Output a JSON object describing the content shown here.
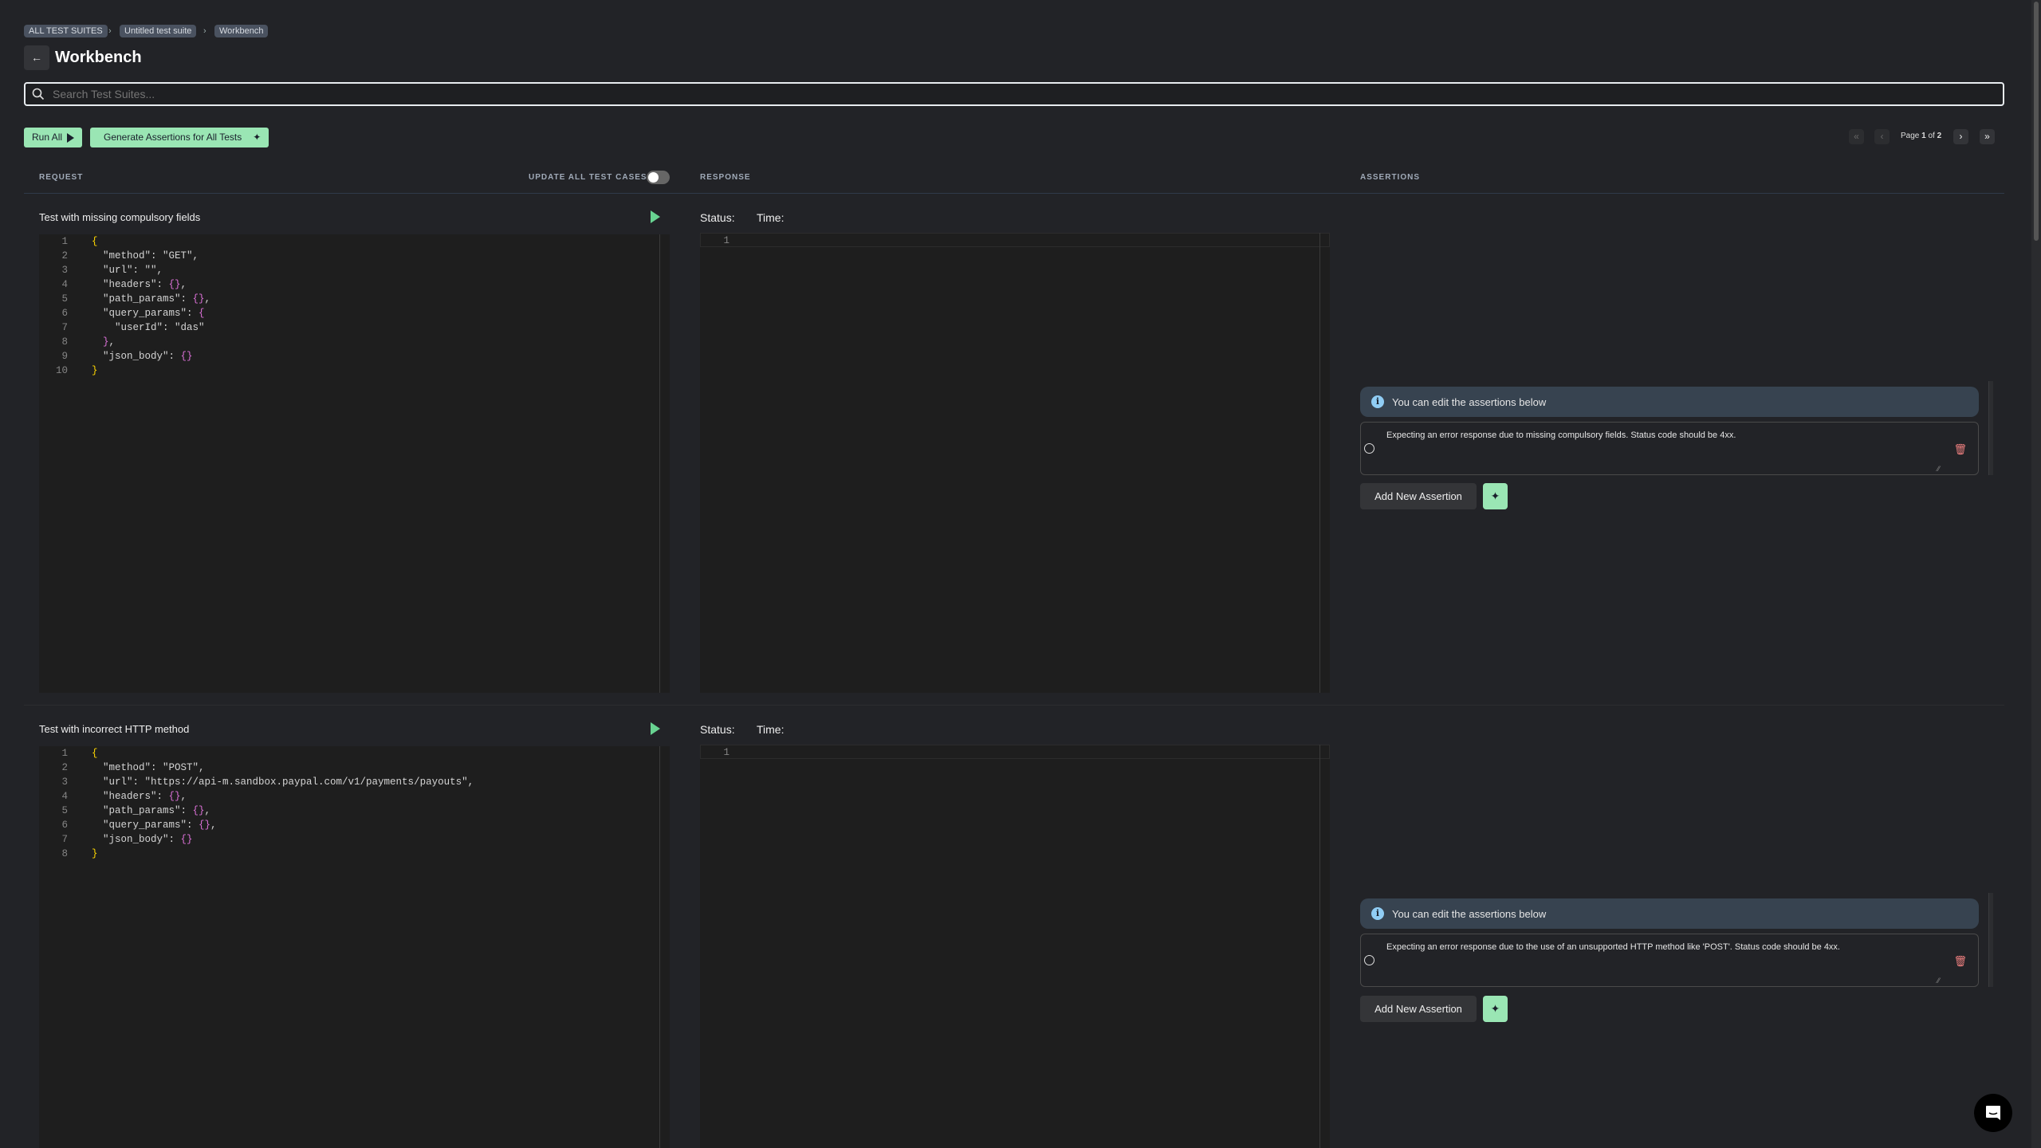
{
  "breadcrumb": [
    "ALL TEST SUITES",
    "Untitled test suite",
    "Workbench"
  ],
  "title": "Workbench",
  "search": {
    "placeholder": "Search Test Suites..."
  },
  "toolbar": {
    "run_all": "Run All",
    "generate": "Generate Assertions for All Tests"
  },
  "pagination": {
    "label": "Page",
    "current": "1",
    "of": "of",
    "total": "2"
  },
  "columns": {
    "request": "REQUEST",
    "update_all": "UPDATE ALL TEST CASES",
    "update_all_on": false,
    "response": "RESPONSE",
    "assertions": "ASSERTIONS"
  },
  "response_labels": {
    "status": "Status:",
    "time": "Time:"
  },
  "tests": [
    {
      "name": "Test with missing compulsory fields",
      "request_lines": [
        [
          "{"
        ],
        [
          "\"method\": \"GET\","
        ],
        [
          "\"url\": \"\","
        ],
        [
          "\"headers\": ",
          "{}",
          ","
        ],
        [
          "\"path_params\": ",
          "{}",
          ","
        ],
        [
          "\"query_params\": ",
          "{"
        ],
        [
          "  \"userId\": \"das\""
        ],
        [
          "}",
          ","
        ],
        [
          "\"json_body\": ",
          "{}"
        ],
        [
          "}"
        ]
      ],
      "response_lines": [
        "1"
      ],
      "info": "You can edit the assertions below",
      "assertion": "Expecting an error response due to missing compulsory fields. Status code should be 4xx.",
      "add_label": "Add New Assertion"
    },
    {
      "name": "Test with incorrect HTTP method",
      "request_lines": [
        [
          "{"
        ],
        [
          "\"method\": \"POST\","
        ],
        [
          "\"url\": \"https://api-m.sandbox.paypal.com/v1/payments/payouts\","
        ],
        [
          "\"headers\": ",
          "{}",
          ","
        ],
        [
          "\"path_params\": ",
          "{}",
          ","
        ],
        [
          "\"query_params\": ",
          "{}",
          ","
        ],
        [
          "\"json_body\": ",
          "{}"
        ],
        [
          "}"
        ]
      ],
      "response_lines": [
        "1"
      ],
      "info": "You can edit the assertions below",
      "assertion": "Expecting an error response due to the use of an unsupported HTTP method like 'POST'. Status code should be 4xx.",
      "add_label": "Add New Assertion"
    }
  ],
  "colors": {
    "accent": "#9ae6b4",
    "info_bg": "#374350",
    "background": "#222327"
  }
}
